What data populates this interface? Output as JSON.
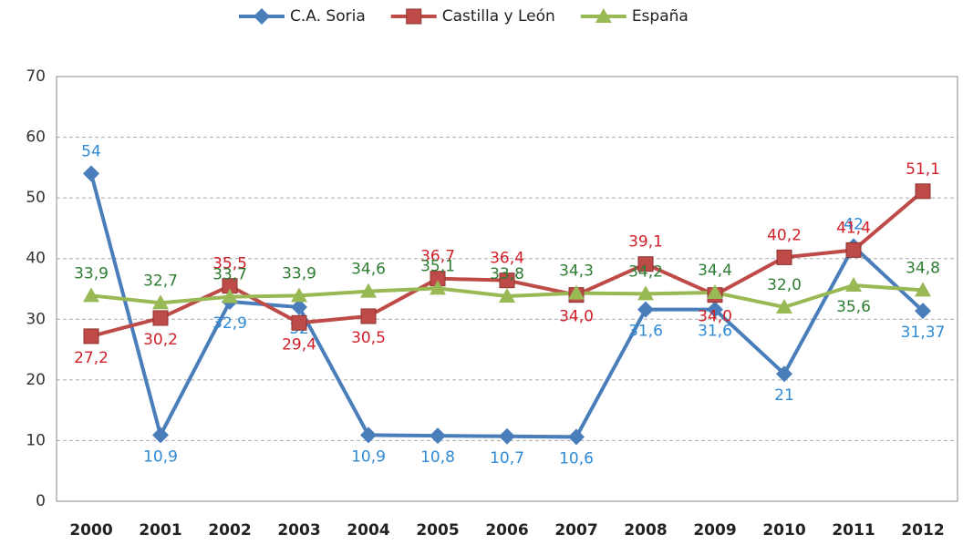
{
  "chart_data": {
    "type": "line",
    "categories": [
      "2000",
      "2001",
      "2002",
      "2003",
      "2004",
      "2005",
      "2006",
      "2007",
      "2008",
      "2009",
      "2010",
      "2011",
      "2012"
    ],
    "series": [
      {
        "name": "C.A. Soria",
        "color": "#4a7ebb",
        "label_color": "#2f8ad6",
        "marker": "diamond",
        "values": [
          54,
          10.9,
          32.9,
          32,
          10.9,
          10.8,
          10.7,
          10.6,
          31.6,
          31.6,
          21,
          42,
          31.37
        ],
        "value_labels": [
          "54",
          "10,9",
          "32,9",
          "32",
          "10,9",
          "10,8",
          "10,7",
          "10,6",
          "31,6",
          "31,6",
          "21",
          "42",
          "31,37"
        ]
      },
      {
        "name": "Castilla y León",
        "color": "#be4b48",
        "label_color": "#d0202a",
        "marker": "square",
        "values": [
          27.2,
          30.2,
          35.5,
          29.4,
          30.5,
          36.7,
          36.4,
          34.0,
          39.1,
          34.0,
          40.2,
          41.4,
          51.1
        ],
        "value_labels": [
          "27,2",
          "30,2",
          "35,5",
          "29,4",
          "30,5",
          "36,7",
          "36,4",
          "34,0",
          "39,1",
          "34,0",
          "40,2",
          "41,4",
          "51,1"
        ]
      },
      {
        "name": "España",
        "color": "#98b954",
        "label_color": "#2e7d32",
        "marker": "triangle",
        "values": [
          33.9,
          32.7,
          33.7,
          33.9,
          34.6,
          35.1,
          33.8,
          34.3,
          34.2,
          34.4,
          32.0,
          35.6,
          34.8
        ],
        "value_labels": [
          "33,9",
          "32,7",
          "33,7",
          "33,9",
          "34,6",
          "35,1",
          "33,8",
          "34,3",
          "34,2",
          "34,4",
          "32,0",
          "35,6",
          "34,8"
        ]
      }
    ],
    "ylim": [
      0,
      70
    ],
    "yticks": [
      0,
      10,
      20,
      30,
      40,
      50,
      60,
      70
    ],
    "grid": true,
    "legend": "top"
  }
}
